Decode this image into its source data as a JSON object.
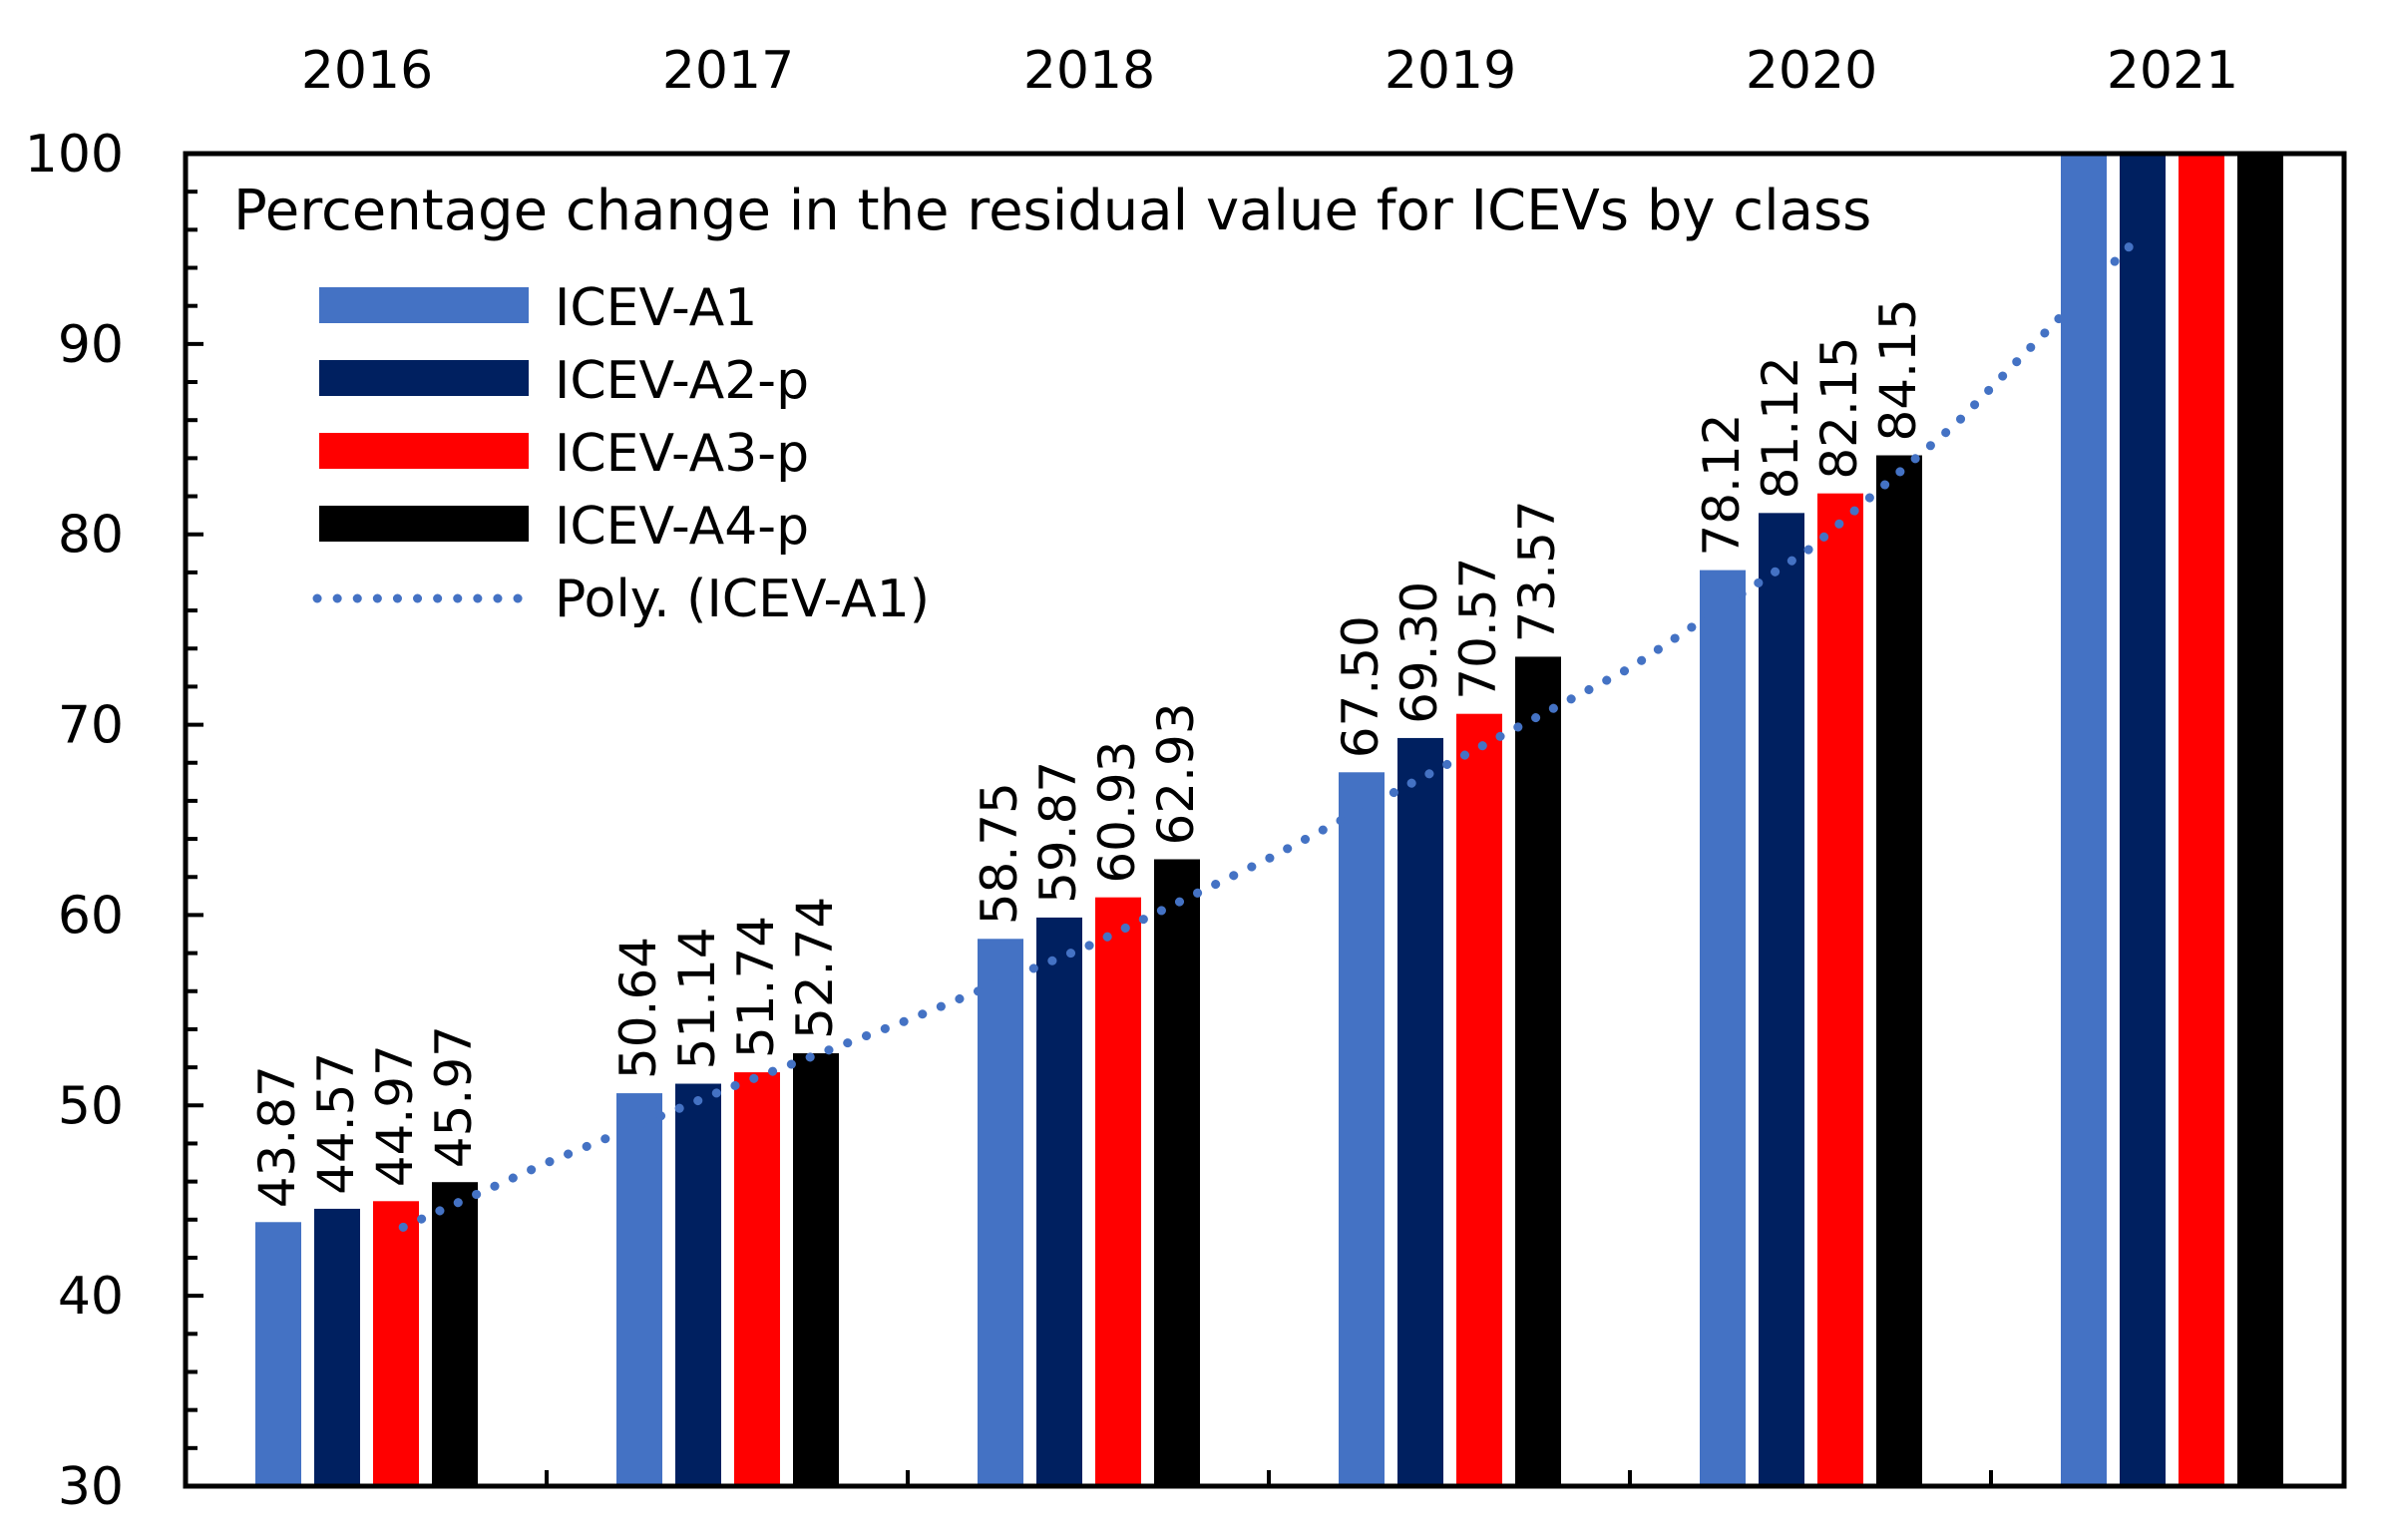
{
  "chart_data": {
    "type": "bar",
    "title": "Percentage change in the residual value for ICEVs by class",
    "xlabel": "",
    "ylabel": "",
    "categories": [
      "2016",
      "2017",
      "2018",
      "2019",
      "2020",
      "2021"
    ],
    "ylim": [
      30,
      100
    ],
    "yticks": [
      30,
      40,
      50,
      60,
      70,
      80,
      90,
      100
    ],
    "legend_position": "top-left",
    "series": [
      {
        "name": "ICEV-A1",
        "color": "#4472C4",
        "values": [
          43.87,
          50.64,
          58.75,
          67.5,
          78.12,
          100
        ],
        "labels": [
          "43.87",
          "50.64",
          "58.75",
          "67.50",
          "78.12",
          ""
        ]
      },
      {
        "name": "ICEV-A2-p",
        "color": "#002060",
        "values": [
          44.57,
          51.14,
          59.87,
          69.3,
          81.12,
          100
        ],
        "labels": [
          "44.57",
          "51.14",
          "59.87",
          "69.30",
          "81.12",
          ""
        ]
      },
      {
        "name": "ICEV-A3-p",
        "color": "#FF0000",
        "values": [
          44.97,
          51.74,
          60.93,
          70.57,
          82.15,
          100
        ],
        "labels": [
          "44.97",
          "51.74",
          "60.93",
          "70.57",
          "82.15",
          ""
        ]
      },
      {
        "name": "ICEV-A4-p",
        "color": "#000000",
        "values": [
          45.97,
          52.74,
          62.93,
          73.57,
          84.15,
          100
        ],
        "labels": [
          "45.97",
          "52.74",
          "62.93",
          "73.57",
          "84.15",
          ""
        ]
      }
    ],
    "trendline": {
      "name": "Poly. (ICEV-A1)",
      "color": "#4472C4",
      "style": "dotted",
      "x": [
        2016.1,
        2016.5,
        2017.0,
        2017.5,
        2018.0,
        2018.5,
        2019.0,
        2019.5,
        2020.0,
        2020.4,
        2020.9
      ],
      "y": [
        43.6,
        47.0,
        50.9,
        54.5,
        58.4,
        63.0,
        68.0,
        73.0,
        79.3,
        85.8,
        95.5
      ]
    }
  }
}
